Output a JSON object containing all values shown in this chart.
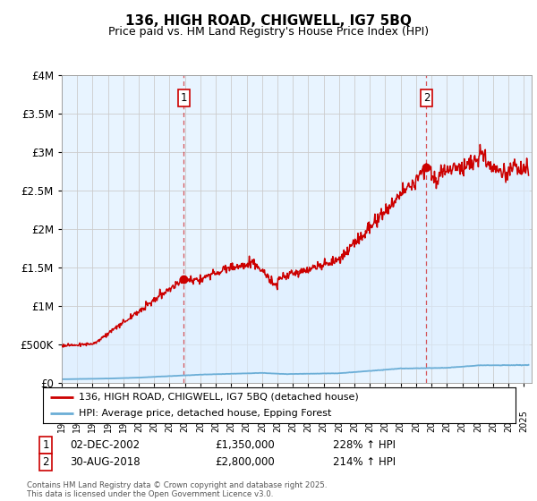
{
  "title": "136, HIGH ROAD, CHIGWELL, IG7 5BQ",
  "subtitle": "Price paid vs. HM Land Registry's House Price Index (HPI)",
  "legend_line1": "136, HIGH ROAD, CHIGWELL, IG7 5BQ (detached house)",
  "legend_line2": "HPI: Average price, detached house, Epping Forest",
  "annotation1_label": "1",
  "annotation1_date": "02-DEC-2002",
  "annotation1_price": "£1,350,000",
  "annotation1_hpi": "228% ↑ HPI",
  "annotation2_label": "2",
  "annotation2_date": "30-AUG-2018",
  "annotation2_price": "£2,800,000",
  "annotation2_hpi": "214% ↑ HPI",
  "footnote": "Contains HM Land Registry data © Crown copyright and database right 2025.\nThis data is licensed under the Open Government Licence v3.0.",
  "sale1_x": 2002.92,
  "sale1_y": 1350000,
  "sale2_x": 2018.67,
  "sale2_y": 2800000,
  "hpi_color": "#6baed6",
  "price_color": "#cc0000",
  "vline_color": "#cc0000",
  "fill_color": "#ddeeff",
  "grid_color": "#cccccc",
  "background_color": "#ffffff",
  "plot_bg_color": "#e8f4ff",
  "ylim": [
    0,
    4000000
  ],
  "xlim": [
    1995.0,
    2025.5
  ]
}
